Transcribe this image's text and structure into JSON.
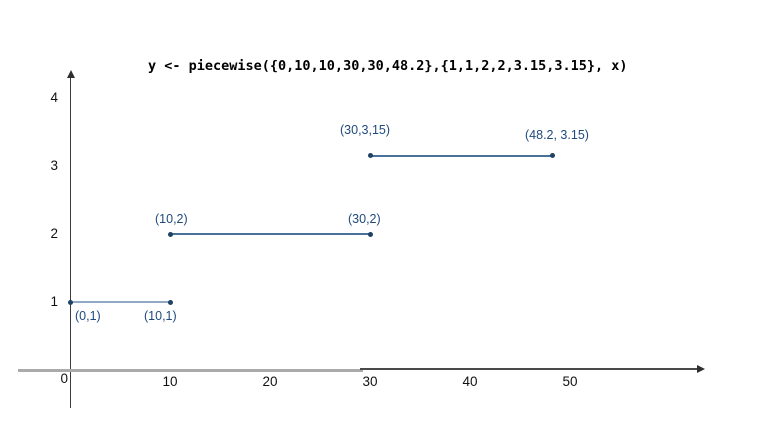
{
  "title": "y <- piecewise({0,10,10,30,30,48.2},{1,1,2,2,3.15,3.15}, x)",
  "axes": {
    "origin_label": "0",
    "x_tick_labels": [
      "10",
      "20",
      "30",
      "40",
      "50"
    ],
    "y_tick_labels": [
      "1",
      "2",
      "3",
      "4"
    ]
  },
  "colors": {
    "segment_first": "#8fa9c6",
    "segment": "#4a7299",
    "point": "#1f4265",
    "point_label": "#1f497d",
    "axis": "#3d3d3d",
    "axis_gray_stroke": "#aaaaaa",
    "tick_text": "#111111"
  },
  "chart_data": {
    "type": "line",
    "title": "y <- piecewise({0,10,10,30,30,48.2},{1,1,2,2,3.15,3.15}, x)",
    "description": "Piecewise constant (step) function drawn as three horizontal segments with endpoint dots and coordinate labels",
    "series": [
      {
        "name": "segment-1",
        "x": [
          0,
          10
        ],
        "y": [
          1,
          1
        ],
        "point_labels": [
          "(0,1)",
          "(10,1)"
        ]
      },
      {
        "name": "segment-2",
        "x": [
          10,
          30
        ],
        "y": [
          2,
          2
        ],
        "point_labels": [
          "(10,2)",
          "(30,2)"
        ]
      },
      {
        "name": "segment-3",
        "x": [
          30,
          48.2
        ],
        "y": [
          3.15,
          3.15
        ],
        "point_labels": [
          "(30,3,15)",
          "(48.2, 3.15)"
        ]
      }
    ],
    "x_ticks": [
      0,
      10,
      20,
      30,
      40,
      50
    ],
    "y_ticks": [
      1,
      2,
      3,
      4
    ],
    "xlabel": "",
    "ylabel": "",
    "xlim": [
      0,
      63
    ],
    "ylim": [
      0,
      4.4
    ],
    "grid": false,
    "legend": false
  }
}
